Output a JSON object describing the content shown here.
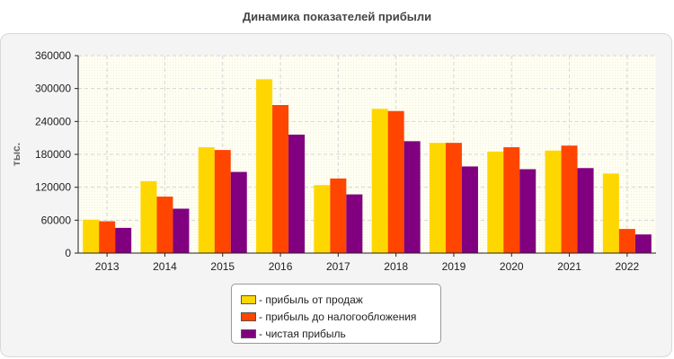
{
  "title": "Динамика показателей прибыли",
  "chart_data": {
    "type": "bar",
    "title": "Динамика показателей прибыли",
    "xlabel": "",
    "ylabel": "тыс.",
    "ylim": [
      0,
      360000
    ],
    "yticks": [
      "0",
      "60000",
      "120000",
      "180000",
      "240000",
      "300000",
      "360000"
    ],
    "grid": true,
    "legend_position": "bottom",
    "categories": [
      "2013",
      "2014",
      "2015",
      "2016",
      "2017",
      "2018",
      "2019",
      "2020",
      "2021",
      "2022"
    ],
    "series": [
      {
        "name": "- прибыль от продаж",
        "color": "#ffd700",
        "values": [
          61000,
          131000,
          193000,
          317000,
          124000,
          263000,
          201000,
          185000,
          187000,
          145000
        ]
      },
      {
        "name": "- прибыль до налогообложения",
        "color": "#ff4500",
        "values": [
          58000,
          103000,
          188000,
          270000,
          136000,
          259000,
          201000,
          193000,
          196000,
          44000
        ]
      },
      {
        "name": "- чистая прибыль",
        "color": "#800080",
        "values": [
          46000,
          81000,
          148000,
          216000,
          107000,
          204000,
          158000,
          153000,
          155000,
          34000
        ]
      }
    ]
  }
}
